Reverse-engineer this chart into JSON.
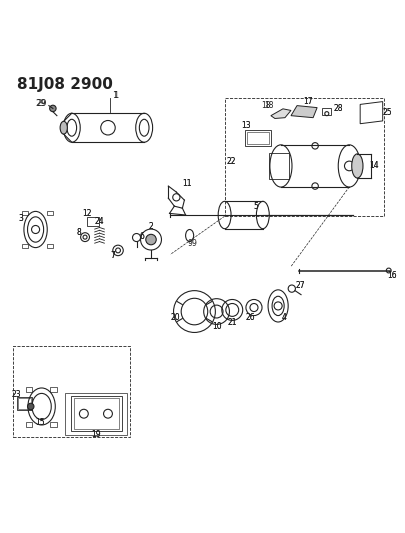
{
  "title": "81J08 2900",
  "bg_color": "#ffffff",
  "line_color": "#222222",
  "title_fontsize": 11,
  "fig_width": 4.05,
  "fig_height": 5.33,
  "dpi": 100
}
